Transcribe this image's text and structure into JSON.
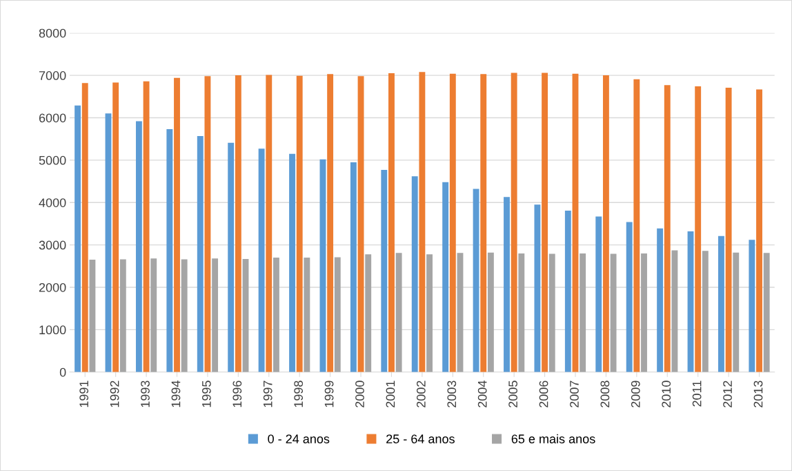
{
  "chart_data": {
    "type": "bar",
    "categories": [
      "1991",
      "1992",
      "1993",
      "1994",
      "1995",
      "1996",
      "1997",
      "1998",
      "1999",
      "2000",
      "2001",
      "2002",
      "2003",
      "2004",
      "2005",
      "2006",
      "2007",
      "2008",
      "2009",
      "2010",
      "2011",
      "2012",
      "2013"
    ],
    "series": [
      {
        "name": "0 - 24 anos",
        "color": "#5b9bd5",
        "values": [
          6290,
          6100,
          5920,
          5730,
          5570,
          5410,
          5270,
          5150,
          5020,
          4950,
          4770,
          4620,
          4480,
          4320,
          4130,
          3950,
          3810,
          3670,
          3540,
          3390,
          3320,
          3210,
          3120
        ]
      },
      {
        "name": "25 - 64 anos",
        "color": "#ed7d31",
        "values": [
          6820,
          6830,
          6860,
          6940,
          6980,
          7000,
          7010,
          6990,
          7030,
          6980,
          7050,
          7080,
          7040,
          7030,
          7060,
          7060,
          7040,
          7000,
          6910,
          6770,
          6740,
          6710,
          6670
        ]
      },
      {
        "name": "65 e mais anos",
        "color": "#a5a5a5",
        "values": [
          2650,
          2660,
          2680,
          2660,
          2680,
          2670,
          2700,
          2700,
          2710,
          2780,
          2810,
          2780,
          2810,
          2820,
          2800,
          2790,
          2800,
          2790,
          2800,
          2870,
          2860,
          2820,
          2810
        ]
      }
    ],
    "ylim": [
      0,
      8000
    ],
    "yticks": [
      0,
      1000,
      2000,
      3000,
      4000,
      5000,
      6000,
      7000,
      8000
    ],
    "grid": "y",
    "legend": "bottom"
  }
}
